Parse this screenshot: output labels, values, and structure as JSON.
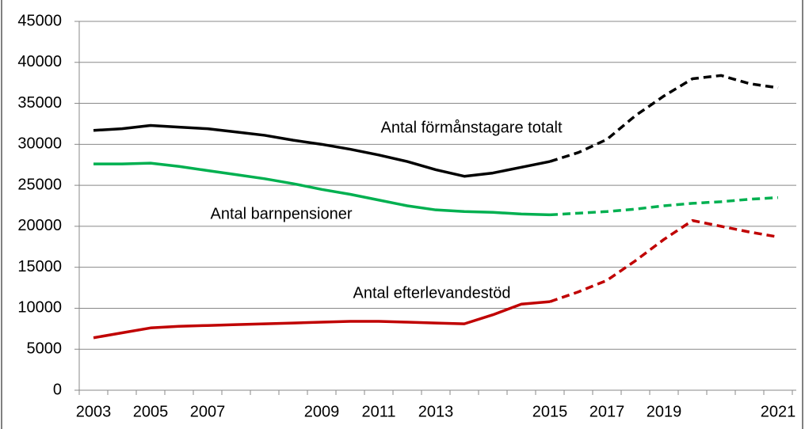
{
  "chart_data": {
    "type": "line",
    "categories": [
      "2003",
      null,
      "2005",
      null,
      "2007",
      null,
      null,
      null,
      "2009",
      null,
      "2011",
      null,
      "2013",
      null,
      null,
      null,
      "2015",
      null,
      "2017",
      null,
      "2019",
      null,
      null,
      null,
      "2021"
    ],
    "series": [
      {
        "name": "Antal förmånstagare totalt",
        "color": "#000000",
        "dashed": false,
        "values": [
          31700,
          31900,
          32300,
          32100,
          31900,
          31500,
          31100,
          30500,
          30000,
          29400,
          28700,
          27900,
          26900,
          26100,
          26500,
          27200,
          27900,
          null,
          null,
          null,
          null,
          null,
          null,
          null,
          null
        ]
      },
      {
        "color": "#000000",
        "dashed": true,
        "values": [
          null,
          null,
          null,
          null,
          null,
          null,
          null,
          null,
          null,
          null,
          null,
          null,
          null,
          null,
          null,
          null,
          27900,
          29000,
          30600,
          33500,
          35900,
          38000,
          38400,
          37400,
          36900
        ]
      },
      {
        "name": "Antal barnpensioner",
        "color": "#00b050",
        "dashed": false,
        "values": [
          27600,
          27600,
          27700,
          27300,
          26800,
          26300,
          25800,
          25200,
          24500,
          23900,
          23200,
          22500,
          22000,
          21800,
          21700,
          21500,
          21400,
          null,
          null,
          null,
          null,
          null,
          null,
          null,
          null
        ]
      },
      {
        "color": "#00b050",
        "dashed": true,
        "values": [
          null,
          null,
          null,
          null,
          null,
          null,
          null,
          null,
          null,
          null,
          null,
          null,
          null,
          null,
          null,
          null,
          21400,
          21600,
          21800,
          22100,
          22500,
          22800,
          23000,
          23300,
          23500
        ]
      },
      {
        "name": "Antal efterlevandestöd",
        "color": "#c00000",
        "dashed": false,
        "values": [
          6400,
          7000,
          7600,
          7800,
          7900,
          8000,
          8100,
          8200,
          8300,
          8400,
          8400,
          8300,
          8200,
          8100,
          9200,
          10500,
          10800,
          null,
          null,
          null,
          null,
          null,
          null,
          null,
          null
        ]
      },
      {
        "color": "#c00000",
        "dashed": true,
        "values": [
          null,
          null,
          null,
          null,
          null,
          null,
          null,
          null,
          null,
          null,
          null,
          null,
          null,
          null,
          null,
          null,
          10800,
          12000,
          13400,
          15800,
          18400,
          20700,
          20000,
          19300,
          18700
        ]
      }
    ],
    "ylim": [
      0,
      45000
    ],
    "yticks": [
      0,
      5000,
      10000,
      15000,
      20000,
      25000,
      30000,
      35000,
      40000,
      45000
    ],
    "grid": true
  }
}
